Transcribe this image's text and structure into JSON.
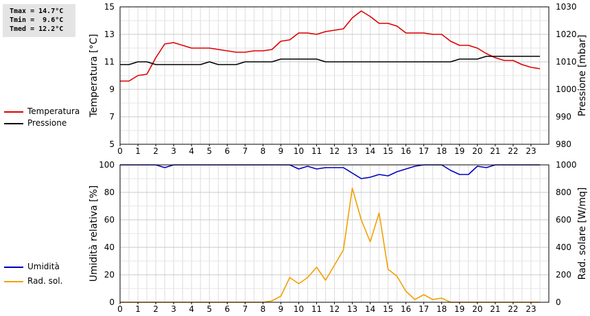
{
  "stats": {
    "tmax": "Tmax = 14.7°C",
    "tmin": "Tmin =  9.6°C",
    "tmed": "Tmed = 12.2°C"
  },
  "legend_top": [
    {
      "label": "Temperatura",
      "color": "#dd0000"
    },
    {
      "label": "Pressione",
      "color": "#000000"
    }
  ],
  "legend_bottom": [
    {
      "label": "Umidità",
      "color": "#0000bb"
    },
    {
      "label": "Rad. sol.",
      "color": "#f0a000"
    }
  ],
  "chart_data": [
    {
      "type": "line",
      "ylabel": "Temperatura [°C]",
      "y2label": "Pressione [mbar]",
      "xlim": [
        0,
        24
      ],
      "ylim": [
        5,
        15
      ],
      "y2lim": [
        980,
        1030
      ],
      "x_ticks": [
        "0",
        "1",
        "2",
        "3",
        "4",
        "5",
        "6",
        "7",
        "8",
        "9",
        "10",
        "11",
        "12",
        "13",
        "14",
        "15",
        "16",
        "17",
        "18",
        "19",
        "20",
        "21",
        "22",
        "23"
      ],
      "y_ticks": [
        "5",
        "7",
        "9",
        "11",
        "13",
        "15"
      ],
      "y2_ticks": [
        "980",
        "990",
        "1000",
        "1010",
        "1020",
        "1030"
      ],
      "grid": true,
      "series": [
        {
          "name": "Temperatura",
          "axis": "left",
          "color": "#dd0000",
          "x": [
            0,
            0.5,
            1,
            1.5,
            2,
            2.5,
            3,
            3.5,
            4,
            4.5,
            5,
            5.5,
            6,
            6.5,
            7,
            7.5,
            8,
            8.5,
            9,
            9.5,
            10,
            10.5,
            11,
            11.5,
            12,
            12.5,
            13,
            13.5,
            14,
            14.5,
            15,
            15.5,
            16,
            16.5,
            17,
            17.5,
            18,
            18.5,
            19,
            19.5,
            20,
            20.5,
            21,
            21.5,
            22,
            22.5,
            23,
            23.5
          ],
          "y": [
            9.6,
            9.6,
            10.0,
            10.1,
            11.3,
            12.3,
            12.4,
            12.2,
            12.0,
            12.0,
            12.0,
            11.9,
            11.8,
            11.7,
            11.7,
            11.8,
            11.8,
            11.9,
            12.5,
            12.6,
            13.1,
            13.1,
            13.0,
            13.2,
            13.3,
            13.4,
            14.2,
            14.7,
            14.3,
            13.8,
            13.8,
            13.6,
            13.1,
            13.1,
            13.1,
            13.0,
            13.0,
            12.5,
            12.2,
            12.2,
            12.0,
            11.6,
            11.3,
            11.1,
            11.1,
            10.8,
            10.6,
            10.5
          ]
        },
        {
          "name": "Pressione",
          "axis": "right",
          "color": "#000000",
          "x": [
            0,
            0.5,
            1,
            1.5,
            2,
            2.5,
            3,
            3.5,
            4,
            4.5,
            5,
            5.5,
            6,
            6.5,
            7,
            7.5,
            8,
            8.5,
            9,
            9.5,
            10,
            10.5,
            11,
            11.5,
            12,
            12.5,
            13,
            13.5,
            14,
            14.5,
            15,
            15.5,
            16,
            16.5,
            17,
            17.5,
            18,
            18.5,
            19,
            19.5,
            20,
            20.5,
            21,
            21.5,
            22,
            22.5,
            23,
            23.5
          ],
          "y": [
            1009,
            1009,
            1010,
            1010,
            1009,
            1009,
            1009,
            1009,
            1009,
            1009,
            1010,
            1009,
            1009,
            1009,
            1010,
            1010,
            1010,
            1010,
            1011,
            1011,
            1011,
            1011,
            1011,
            1010,
            1010,
            1010,
            1010,
            1010,
            1010,
            1010,
            1010,
            1010,
            1010,
            1010,
            1010,
            1010,
            1010,
            1010,
            1011,
            1011,
            1011,
            1012,
            1012,
            1012,
            1012,
            1012,
            1012,
            1012
          ]
        }
      ]
    },
    {
      "type": "line",
      "ylabel": "Umidità relativa [%]",
      "y2label": "Rad. solare [W/mq]",
      "xlim": [
        0,
        24
      ],
      "ylim": [
        0,
        100
      ],
      "y2lim": [
        0,
        1000
      ],
      "x_ticks": [
        "0",
        "1",
        "2",
        "3",
        "4",
        "5",
        "6",
        "7",
        "8",
        "9",
        "10",
        "11",
        "12",
        "13",
        "14",
        "15",
        "16",
        "17",
        "18",
        "19",
        "20",
        "21",
        "22",
        "23"
      ],
      "y_ticks": [
        "0",
        "20",
        "40",
        "60",
        "80",
        "100"
      ],
      "y2_ticks": [
        "0",
        "200",
        "400",
        "600",
        "800",
        "1000"
      ],
      "grid": true,
      "series": [
        {
          "name": "Umidità",
          "axis": "left",
          "color": "#0000bb",
          "x": [
            0,
            0.5,
            1,
            1.5,
            2,
            2.5,
            3,
            3.5,
            4,
            4.5,
            5,
            5.5,
            6,
            6.5,
            7,
            7.5,
            8,
            8.5,
            9,
            9.5,
            10,
            10.5,
            11,
            11.5,
            12,
            12.5,
            13,
            13.5,
            14,
            14.5,
            15,
            15.5,
            16,
            16.5,
            17,
            17.5,
            18,
            18.5,
            19,
            19.5,
            20,
            20.5,
            21,
            21.5,
            22,
            22.5,
            23,
            23.5
          ],
          "y": [
            100,
            100,
            100,
            100,
            100,
            98,
            100,
            100,
            100,
            100,
            100,
            100,
            100,
            100,
            100,
            100,
            100,
            100,
            100,
            100,
            97,
            99,
            97,
            98,
            98,
            98,
            94,
            90,
            91,
            93,
            92,
            95,
            97,
            99,
            100,
            100,
            100,
            96,
            93,
            93,
            99,
            98,
            100,
            100,
            100,
            100,
            100,
            100
          ]
        },
        {
          "name": "Rad. sol.",
          "axis": "right",
          "color": "#f0a000",
          "x": [
            0,
            0.5,
            1,
            1.5,
            2,
            2.5,
            3,
            3.5,
            4,
            4.5,
            5,
            5.5,
            6,
            6.5,
            7,
            7.5,
            8,
            8.5,
            9,
            9.5,
            10,
            10.5,
            11,
            11.5,
            12,
            12.5,
            13,
            13.5,
            14,
            14.5,
            15,
            15.5,
            16,
            16.5,
            17,
            17.5,
            18,
            18.5,
            19,
            19.5,
            20,
            20.5,
            21,
            21.5,
            22,
            22.5,
            23,
            23.5
          ],
          "y": [
            0,
            0,
            0,
            0,
            0,
            0,
            0,
            0,
            0,
            0,
            0,
            0,
            0,
            0,
            0,
            0,
            0,
            10,
            45,
            180,
            135,
            180,
            255,
            160,
            270,
            380,
            830,
            600,
            440,
            650,
            240,
            190,
            80,
            20,
            55,
            20,
            30,
            0,
            0,
            0,
            0,
            0,
            0,
            0,
            0,
            0,
            0,
            0
          ]
        }
      ]
    }
  ]
}
